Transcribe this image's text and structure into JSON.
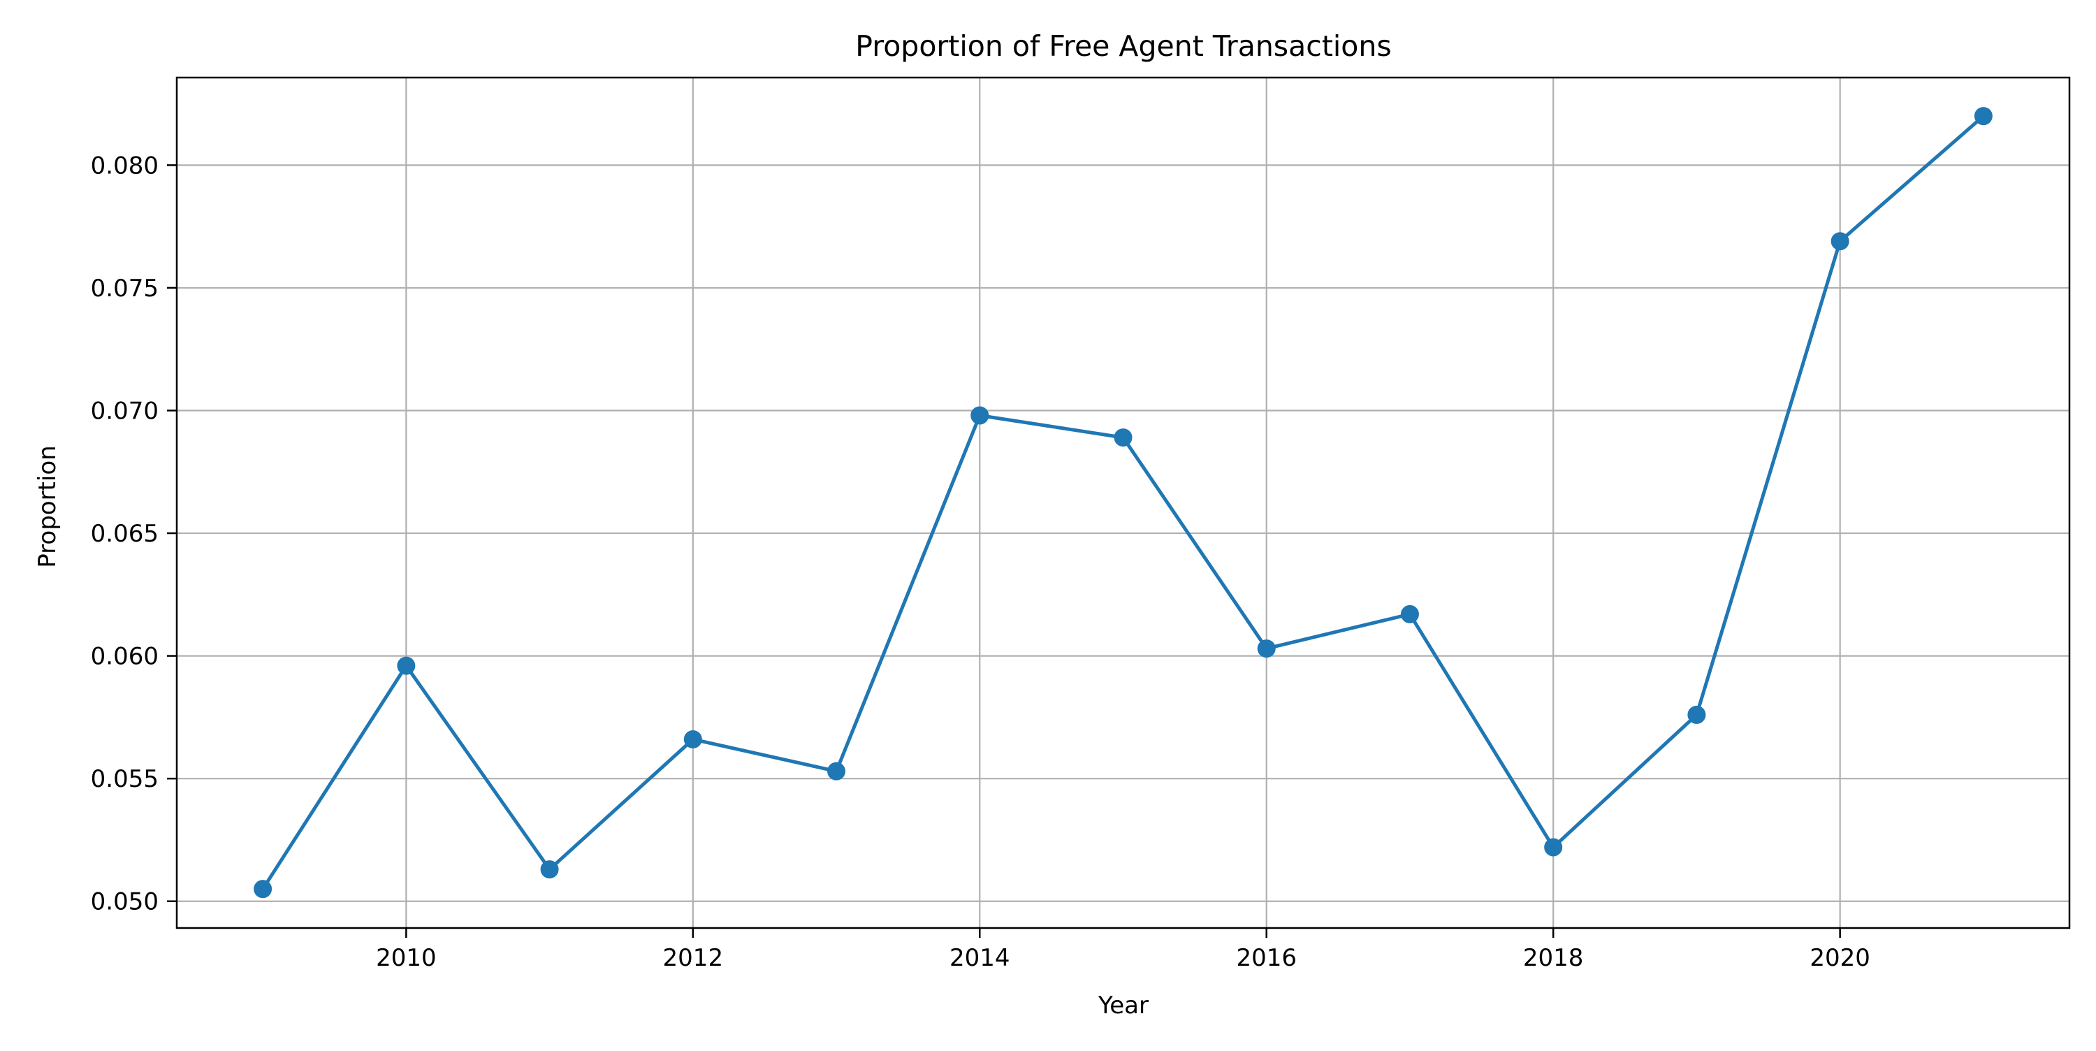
{
  "chart_data": {
    "type": "line",
    "title": "Proportion of Free Agent Transactions",
    "xlabel": "Year",
    "ylabel": "Proportion",
    "x": [
      2009,
      2010,
      2011,
      2012,
      2013,
      2014,
      2015,
      2016,
      2017,
      2018,
      2019,
      2020,
      2021
    ],
    "series": [
      {
        "values": [
          0.0505,
          0.0596,
          0.0513,
          0.0566,
          0.0553,
          0.0698,
          0.0689,
          0.0603,
          0.0617,
          0.0522,
          0.0576,
          0.0769,
          0.082
        ],
        "color": "#1f77b4",
        "marker": "circle"
      }
    ],
    "xlim": [
      2008.4,
      2021.6
    ],
    "ylim": [
      0.04891,
      0.08357
    ],
    "xticks": [
      2010,
      2012,
      2014,
      2016,
      2018,
      2020
    ],
    "xtick_labels": [
      "2010",
      "2012",
      "2014",
      "2016",
      "2018",
      "2020"
    ],
    "yticks": [
      0.05,
      0.055,
      0.06,
      0.065,
      0.07,
      0.075,
      0.08
    ],
    "ytick_labels": [
      "0.050",
      "0.055",
      "0.060",
      "0.065",
      "0.070",
      "0.075",
      "0.080"
    ],
    "grid": true,
    "grid_color": "#b0b0b0",
    "legend": "none"
  }
}
